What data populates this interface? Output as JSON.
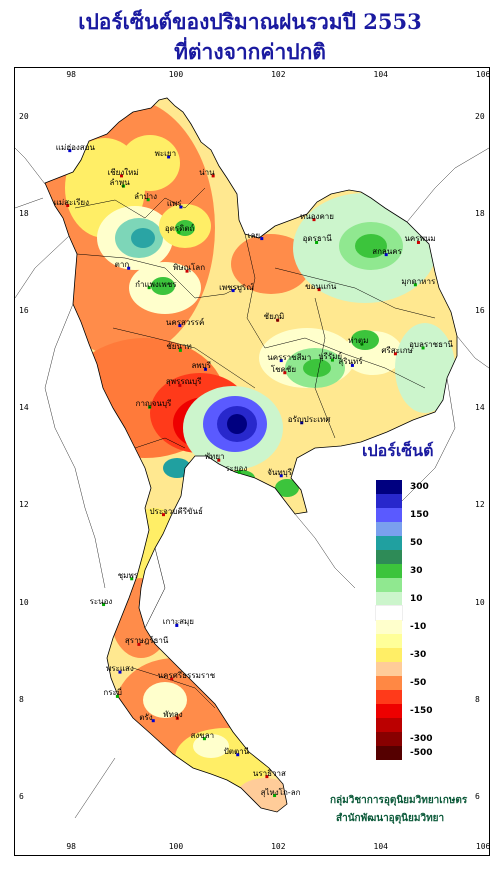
{
  "title": {
    "line1": "เปอร์เซ็นต์ของปริมาณฝนรวมปี 2553",
    "line2": "ที่ต่างจากค่าปกติ"
  },
  "axes": {
    "lon_ticks": [
      "98",
      "100",
      "102",
      "104",
      "106"
    ],
    "lat_ticks": [
      "20",
      "18",
      "16",
      "14",
      "12",
      "10",
      "8",
      "6"
    ]
  },
  "legend": {
    "title": "เปอร์เซ็นต์",
    "items": [
      {
        "color": "#000080",
        "label": "300"
      },
      {
        "color": "#2828cc",
        "label": ""
      },
      {
        "color": "#5a5aff",
        "label": "150"
      },
      {
        "color": "#7aa0ee",
        "label": ""
      },
      {
        "color": "#20a0a0",
        "label": "50"
      },
      {
        "color": "#2e8b57",
        "label": ""
      },
      {
        "color": "#3cc43c",
        "label": "30"
      },
      {
        "color": "#90e890",
        "label": ""
      },
      {
        "color": "#ccf5cc",
        "label": "10"
      },
      {
        "color": "#ffffff",
        "label": ""
      },
      {
        "color": "#ffffcc",
        "label": "-10"
      },
      {
        "color": "#ffff99",
        "label": ""
      },
      {
        "color": "#ffee66",
        "label": "-30"
      },
      {
        "color": "#ffcc99",
        "label": ""
      },
      {
        "color": "#ff8844",
        "label": "-50"
      },
      {
        "color": "#ff3a1a",
        "label": ""
      },
      {
        "color": "#ee0000",
        "label": "-150"
      },
      {
        "color": "#bb0000",
        "label": ""
      },
      {
        "color": "#880000",
        "label": "-300"
      },
      {
        "color": "#550000",
        "label": "-500"
      }
    ]
  },
  "provinces": [
    {
      "name": "แม่ฮ่องสอน",
      "lon": 97.97,
      "lat": 19.3
    },
    {
      "name": "เชียงใหม่",
      "lon": 98.98,
      "lat": 18.78
    },
    {
      "name": "ลำพูน",
      "lon": 99.02,
      "lat": 18.57
    },
    {
      "name": "พะเยา",
      "lon": 99.9,
      "lat": 19.17
    },
    {
      "name": "น่าน",
      "lon": 100.77,
      "lat": 18.78
    },
    {
      "name": "ลำปาง",
      "lon": 99.5,
      "lat": 18.29
    },
    {
      "name": "แพร่",
      "lon": 100.14,
      "lat": 18.14
    },
    {
      "name": "แม่สะเรียง",
      "lon": 97.93,
      "lat": 18.17
    },
    {
      "name": "อุตรดิตถ์",
      "lon": 100.1,
      "lat": 17.62
    },
    {
      "name": "ตาก",
      "lon": 99.12,
      "lat": 16.88
    },
    {
      "name": "พิษณุโลก",
      "lon": 100.26,
      "lat": 16.82
    },
    {
      "name": "กำแพงเพชร",
      "lon": 99.52,
      "lat": 16.48
    },
    {
      "name": "เลย",
      "lon": 101.72,
      "lat": 17.49
    },
    {
      "name": "หนองคาย",
      "lon": 102.74,
      "lat": 17.88
    },
    {
      "name": "อุดรธานี",
      "lon": 102.79,
      "lat": 17.41
    },
    {
      "name": "สกลนคร",
      "lon": 104.15,
      "lat": 17.16
    },
    {
      "name": "นครพนม",
      "lon": 104.78,
      "lat": 17.41
    },
    {
      "name": "มุกดาหาร",
      "lon": 104.72,
      "lat": 16.54
    },
    {
      "name": "เพชรบูรณ์",
      "lon": 101.16,
      "lat": 16.42
    },
    {
      "name": "ขอนแก่น",
      "lon": 102.84,
      "lat": 16.44
    },
    {
      "name": "อุบลราชธานี",
      "lon": 104.87,
      "lat": 15.24
    },
    {
      "name": "นครสวรรค์",
      "lon": 100.12,
      "lat": 15.7
    },
    {
      "name": "ชัยภูมิ",
      "lon": 102.03,
      "lat": 15.81
    },
    {
      "name": "ชัยนาท",
      "lon": 100.13,
      "lat": 15.19
    },
    {
      "name": "ลพบุรี",
      "lon": 100.62,
      "lat": 14.8
    },
    {
      "name": "สุพรรณบุรี",
      "lon": 100.12,
      "lat": 14.47
    },
    {
      "name": "กาญจนบุรี",
      "lon": 99.53,
      "lat": 14.02
    },
    {
      "name": "นครราชสีมา",
      "lon": 102.1,
      "lat": 14.98
    },
    {
      "name": "โชคชัย",
      "lon": 102.17,
      "lat": 14.73
    },
    {
      "name": "บุรีรัมย์",
      "lon": 103.1,
      "lat": 14.99
    },
    {
      "name": "สุรินทร์",
      "lon": 103.49,
      "lat": 14.88
    },
    {
      "name": "ศรีสะเกษ",
      "lon": 104.33,
      "lat": 15.12
    },
    {
      "name": "ท่าตูม",
      "lon": 103.68,
      "lat": 15.32
    },
    {
      "name": "อรัญประเทศ",
      "lon": 102.5,
      "lat": 13.7
    },
    {
      "name": "พัทยา",
      "lon": 100.88,
      "lat": 12.93
    },
    {
      "name": "ระยอง",
      "lon": 101.28,
      "lat": 12.68
    },
    {
      "name": "จันทบุรี",
      "lon": 102.1,
      "lat": 12.61
    },
    {
      "name": "ประจวบคีรีขันธ์",
      "lon": 99.8,
      "lat": 11.81
    },
    {
      "name": "ชุมพร",
      "lon": 99.18,
      "lat": 10.49
    },
    {
      "name": "เกาะสมุย",
      "lon": 100.06,
      "lat": 9.53
    },
    {
      "name": "สุราษฎร์ธานี",
      "lon": 99.32,
      "lat": 9.14
    },
    {
      "name": "ระนอง",
      "lon": 98.63,
      "lat": 9.96
    },
    {
      "name": "พระแสง",
      "lon": 98.95,
      "lat": 8.57
    },
    {
      "name": "นครศรีธรรมราช",
      "lon": 99.96,
      "lat": 8.43
    },
    {
      "name": "กระบี่",
      "lon": 98.9,
      "lat": 8.07
    },
    {
      "name": "ตรัง",
      "lon": 99.6,
      "lat": 7.57
    },
    {
      "name": "พัทลุง",
      "lon": 100.07,
      "lat": 7.62
    },
    {
      "name": "สงขลา",
      "lon": 100.6,
      "lat": 7.2
    },
    {
      "name": "ปัตตานี",
      "lon": 101.25,
      "lat": 6.87
    },
    {
      "name": "นราธิวาส",
      "lon": 101.82,
      "lat": 6.42
    },
    {
      "name": "สุไหงโก-ลก",
      "lon": 101.97,
      "lat": 6.03
    }
  ],
  "credits": {
    "line1": "กลุ่มวิชาการอุตุนิยมวิทยาเกษตร",
    "line2": "สำนักพัฒนาอุตุนิยมวิทยา"
  }
}
